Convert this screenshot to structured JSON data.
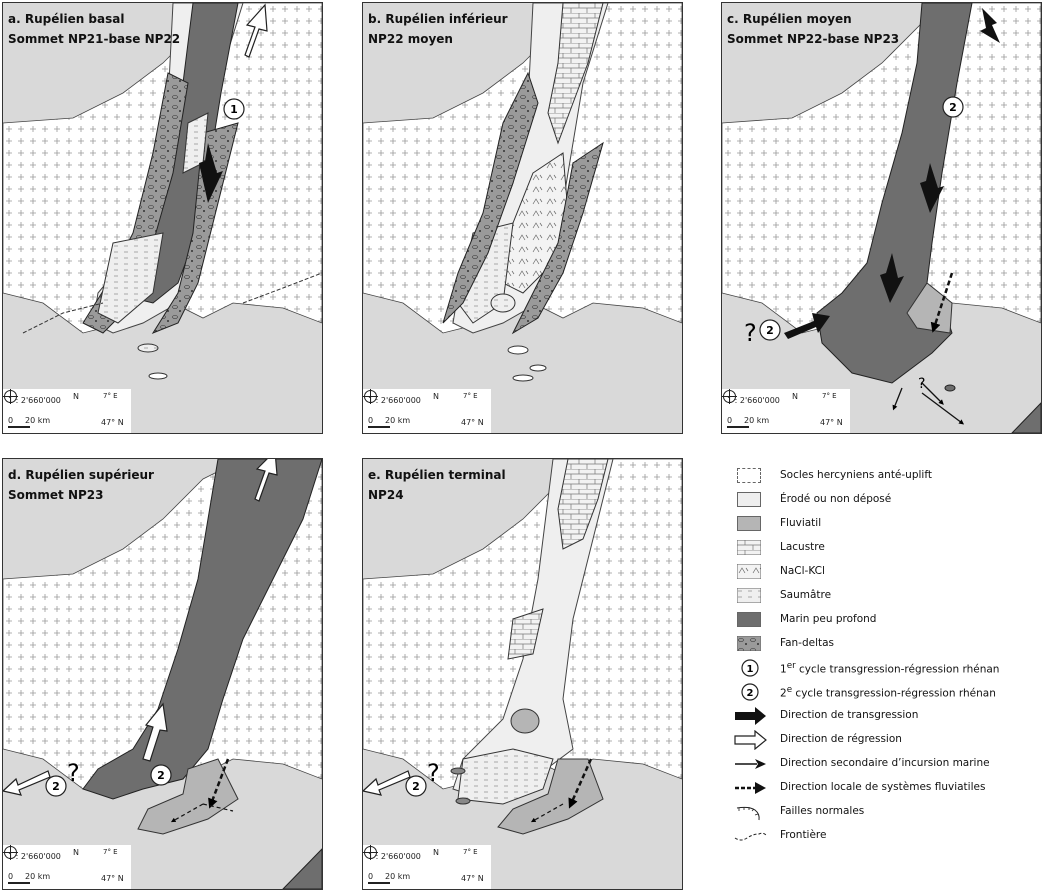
{
  "panels": [
    {
      "title_a": "a. Rupélien basal",
      "title_b": "Sommet NP21-base NP22"
    },
    {
      "title_a": "b. Rupélien inférieur",
      "title_b": "NP22 moyen"
    },
    {
      "title_a": "c. Rupélien moyen",
      "title_b": "Sommet NP22-base NP23"
    },
    {
      "title_a": "d. Rupélien supérieur",
      "title_b": "Sommet NP23"
    },
    {
      "title_a": "e. Rupélien terminal",
      "title_b": "NP24"
    }
  ],
  "scale": {
    "ratio": "1 : 2'660'000",
    "km": "20 km",
    "zero": "0",
    "north": "N",
    "lon": "7° E",
    "lat": "47° N"
  },
  "markers": {
    "cycle1": "1",
    "cycle2": "2",
    "question": "?"
  },
  "legend": [
    {
      "label": "Socles hercyniens anté-uplift",
      "icon": "basement-swatch"
    },
    {
      "label": "Érodé ou non déposé",
      "icon": "eroded-swatch"
    },
    {
      "label": "Fluviatil",
      "icon": "fluvial-swatch"
    },
    {
      "label": "Lacustre",
      "icon": "lacustrine-swatch"
    },
    {
      "label": "NaCl-KCl",
      "icon": "salt-swatch"
    },
    {
      "label": "Saumâtre",
      "icon": "brackish-swatch"
    },
    {
      "label": "Marin peu profond",
      "icon": "shallow-marine-swatch"
    },
    {
      "label": "Fan-deltas",
      "icon": "fan-delta-swatch"
    },
    {
      "label": "1er cycle transgression-régression rhénan",
      "icon": "cycle-1-icon",
      "sup": "er",
      "pre": "1",
      "post": " cycle transgression-régression rhénan"
    },
    {
      "label": "2e cycle transgression-régression rhénan",
      "icon": "cycle-2-icon",
      "sup": "e",
      "pre": "2",
      "post": " cycle transgression-régression rhénan"
    },
    {
      "label": "Direction de transgression",
      "icon": "transgression-arrow-icon"
    },
    {
      "label": "Direction de régression",
      "icon": "regression-arrow-icon"
    },
    {
      "label": "Direction secondaire d’incursion marine",
      "icon": "secondary-incursion-arrow-icon"
    },
    {
      "label": "Direction locale de systèmes fluviatiles",
      "icon": "fluvial-dashed-arrow-icon"
    },
    {
      "label": "Failles normales",
      "icon": "normal-fault-icon"
    },
    {
      "label": "Frontière",
      "icon": "border-icon"
    }
  ],
  "colors": {
    "background": "#d9d9d9",
    "basement": "#ffffff",
    "fluvial": "#b5b5b5",
    "marine": "#6e6e6e",
    "fan": "#9a9a9a",
    "brackish": "#ececec",
    "outline": "#333333"
  }
}
